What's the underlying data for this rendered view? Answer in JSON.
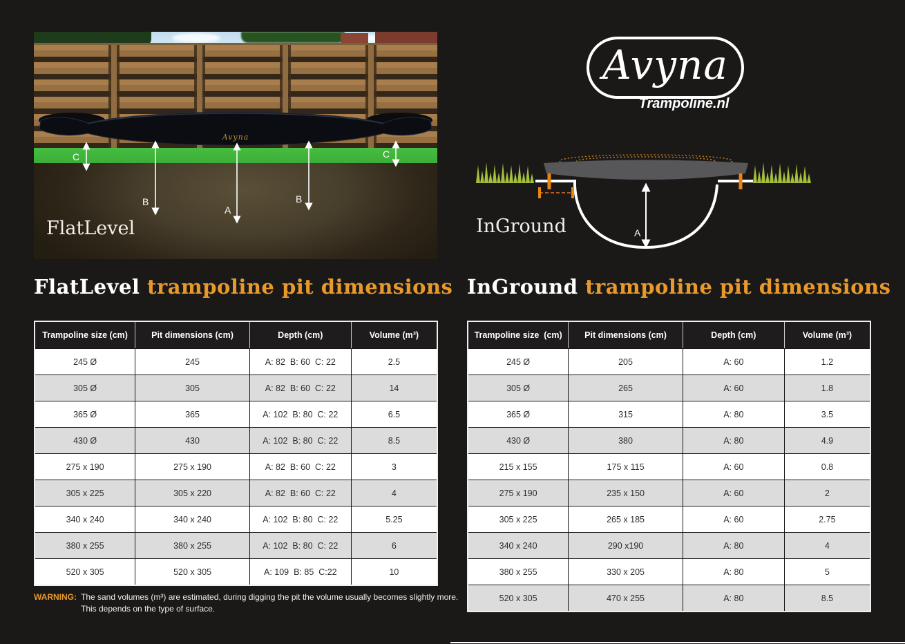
{
  "colors": {
    "background": "#1b1918",
    "accent_orange": "#e8992c",
    "table_header_bg": "#1e1c1c",
    "table_alt_row": "#dcdcdc",
    "diagram_grass_green": "#a3bf3c",
    "diagram_tick_orange": "#e88612"
  },
  "logo": {
    "brand": "Avyna",
    "subtitle": "Trampoline.nl"
  },
  "flatlevel": {
    "photo_label": "FlatLevel",
    "mat_brand": "Avyna",
    "arrows": [
      "C",
      "B",
      "A",
      "B",
      "C"
    ],
    "title_name": "FlatLevel",
    "title_rest": " trampoline pit dimensions",
    "table": {
      "headers": [
        "Trampoline size (cm)",
        "Pit dimensions (cm)",
        "Depth (cm)",
        "Volume (m³)"
      ],
      "rows": [
        [
          "245 Ø",
          "245",
          "A: 82  B: 60  C: 22",
          "2.5"
        ],
        [
          "305 Ø",
          "305",
          "A: 82  B: 60  C: 22",
          "14"
        ],
        [
          "365 Ø",
          "365",
          "A: 102  B: 80  C: 22",
          "6.5"
        ],
        [
          "430 Ø",
          "430",
          "A: 102  B: 80  C: 22",
          "8.5"
        ],
        [
          "275 x 190",
          "275 x 190",
          "A: 82  B: 60  C: 22",
          "3"
        ],
        [
          "305 x 225",
          "305 x 220",
          "A: 82  B: 60  C: 22",
          "4"
        ],
        [
          "340 x 240",
          "340 x 240",
          "A: 102  B: 80  C: 22",
          "5.25"
        ],
        [
          "380 x 255",
          "380 x 255",
          "A: 102  B: 80  C: 22",
          "6"
        ],
        [
          "520 x 305",
          "520 x 305",
          "A: 109  B: 85  C:22",
          "10"
        ]
      ]
    },
    "warning": {
      "label": "WARNING:",
      "line1": "The sand volumes (m³) are estimated, during digging the pit the volume usually becomes slightly more.",
      "line2": "This depends on the type of surface."
    }
  },
  "inground": {
    "diagram_label": "InGround",
    "arrow_label": "A",
    "title_name": "InGround",
    "title_rest": " trampoline pit dimensions",
    "table": {
      "headers": [
        "Trampoline size  (cm)",
        "Pit dimensions (cm)",
        "Depth (cm)",
        "Volume (m³)"
      ],
      "rows": [
        [
          "245 Ø",
          "205",
          "A: 60",
          "1.2"
        ],
        [
          "305 Ø",
          "265",
          "A: 60",
          "1.8"
        ],
        [
          "365 Ø",
          "315",
          "A: 80",
          "3.5"
        ],
        [
          "430 Ø",
          "380",
          "A: 80",
          "4.9"
        ],
        [
          "215 x 155",
          "175 x 115",
          "A: 60",
          "0.8"
        ],
        [
          "275 x 190",
          "235 x 150",
          "A: 60",
          "2"
        ],
        [
          "305 x 225",
          "265 x 185",
          "A: 60",
          "2.75"
        ],
        [
          "340 x 240",
          "290 x190",
          "A: 80",
          "4"
        ],
        [
          "380 x 255",
          "330 x 205",
          "A: 80",
          "5"
        ],
        [
          "520 x 305",
          "470 x 255",
          "A: 80",
          "8.5"
        ]
      ]
    }
  }
}
